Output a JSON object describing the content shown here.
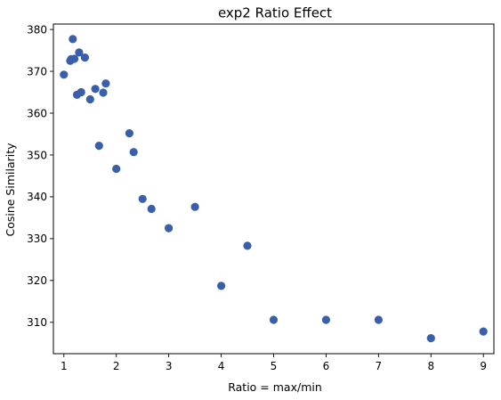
{
  "chart_data": {
    "type": "scatter",
    "title": "exp2 Ratio Effect",
    "xlabel": "Ratio = max/min",
    "ylabel": "Cosine Similarity",
    "xlim": [
      0.8,
      9.2
    ],
    "ylim": [
      302.5,
      381.3
    ],
    "xticks": [
      1,
      2,
      3,
      4,
      5,
      6,
      7,
      8,
      9
    ],
    "yticks": [
      310,
      320,
      330,
      340,
      350,
      360,
      370,
      380
    ],
    "grid": false,
    "marker_color": "#3a5faa",
    "x": [
      1.0,
      1.12,
      1.14,
      1.17,
      1.2,
      1.25,
      1.29,
      1.33,
      1.4,
      1.5,
      1.6,
      1.67,
      1.75,
      1.8,
      2.0,
      2.25,
      2.33,
      2.5,
      2.67,
      3.0,
      3.5,
      4.0,
      4.5,
      5.0,
      6.0,
      7.0,
      8.0,
      9.0
    ],
    "y": [
      369.2,
      372.5,
      372.9,
      377.7,
      373.0,
      364.4,
      374.5,
      365.0,
      373.3,
      363.3,
      365.8,
      352.2,
      364.9,
      367.1,
      346.7,
      355.2,
      350.7,
      339.5,
      337.1,
      332.5,
      337.6,
      318.7,
      328.3,
      310.6,
      310.6,
      310.6,
      306.2,
      307.8
    ]
  }
}
